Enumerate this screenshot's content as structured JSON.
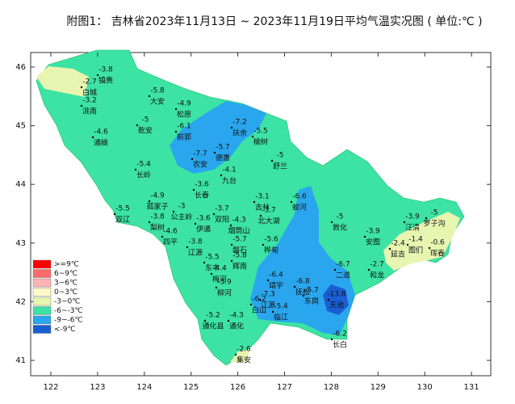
{
  "title": "附图1： 吉林省2023年11月13日 ~ 2023年11月19日平均气温实况图 ( 单位:℃ )",
  "xticks": [
    122,
    123,
    124,
    125,
    126,
    127,
    128,
    129,
    130,
    131
  ],
  "yticks": [
    41,
    42,
    43,
    44,
    45,
    46
  ],
  "legend": [
    {
      "label": ">=9℃",
      "color": "#ff0000"
    },
    {
      "label": "6~9℃",
      "color": "#ff6b6b"
    },
    {
      "label": "3~6℃",
      "color": "#ffb4b4"
    },
    {
      "label": "0~3℃",
      "color": "#fff9c8"
    },
    {
      "label": "-3~0℃",
      "color": "#e8f5b0"
    },
    {
      "label": "-6~-3℃",
      "color": "#3ce3a4"
    },
    {
      "label": "-9~-6℃",
      "color": "#2aa6ee"
    },
    {
      "label": "<-9℃",
      "color": "#1a5ed4"
    }
  ],
  "stations": [
    {
      "name": "镇赉",
      "value": -3.8
    },
    {
      "name": "白城",
      "value": -2.7
    },
    {
      "name": "洮南",
      "value": -3.2
    },
    {
      "name": "大安",
      "value": -5.8
    },
    {
      "name": "松原",
      "value": -4.9
    },
    {
      "name": "前郭",
      "value": -6.1
    },
    {
      "name": "乾安",
      "value": -5
    },
    {
      "name": "通榆",
      "value": -4.6
    },
    {
      "name": "扶余",
      "value": -7.2
    },
    {
      "name": "榆树",
      "value": -5.5
    },
    {
      "name": "农安",
      "value": -7.7
    },
    {
      "name": "德惠",
      "value": -5.7
    },
    {
      "name": "九台",
      "value": -4.1
    },
    {
      "name": "舒兰",
      "value": -5
    },
    {
      "name": "长岭",
      "value": -5.4
    },
    {
      "name": "长春",
      "value": -3.6
    },
    {
      "name": "双辽",
      "value": -5.5
    },
    {
      "name": "孤家子",
      "value": -4.9
    },
    {
      "name": "公主岭",
      "value": -3
    },
    {
      "name": "双阳",
      "value": -3.7
    },
    {
      "name": "伊通",
      "value": -3.6
    },
    {
      "name": "梨树",
      "value": -3.8
    },
    {
      "name": "四平",
      "value": -4.6
    },
    {
      "name": "烟筒山",
      "value": -4.3
    },
    {
      "name": "磐石",
      "value": -5.7
    },
    {
      "name": "吉林",
      "value": -3.1
    },
    {
      "name": "北大湖",
      "value": -3.7
    },
    {
      "name": "蛟河",
      "value": -6.6
    },
    {
      "name": "敦化",
      "value": -5
    },
    {
      "name": "桦甸",
      "value": -5.6
    },
    {
      "name": "辽源",
      "value": -3.8
    },
    {
      "name": "东丰",
      "value": -5.5
    },
    {
      "name": "梅河",
      "value": -4.4
    },
    {
      "name": "辉南",
      "value": -5.8
    },
    {
      "name": "柳河",
      "value": -3.9
    },
    {
      "name": "靖宇",
      "value": -6.4
    },
    {
      "name": "抚松",
      "value": -6.8
    },
    {
      "name": "东岗",
      "value": -5.7
    },
    {
      "name": "二道",
      "value": -6.7
    },
    {
      "name": "天池",
      "value": -13.8
    },
    {
      "name": "长白",
      "value": -6.2
    },
    {
      "name": "白山",
      "value": -6.2
    },
    {
      "name": "江源",
      "value": -7.3
    },
    {
      "name": "临江",
      "value": -5.4
    },
    {
      "name": "通化县",
      "value": -5.2
    },
    {
      "name": "通化",
      "value": -4.3
    },
    {
      "name": "集安",
      "value": -2.6
    },
    {
      "name": "安图",
      "value": -3.9
    },
    {
      "name": "汪清",
      "value": -3.9
    },
    {
      "name": "罗子沟",
      "value": -5
    },
    {
      "name": "图们",
      "value": -1.4
    },
    {
      "name": "珲春",
      "value": -0.6
    },
    {
      "name": "延吉",
      "value": -2.4
    },
    {
      "name": "和龙",
      "value": -2.7
    }
  ]
}
